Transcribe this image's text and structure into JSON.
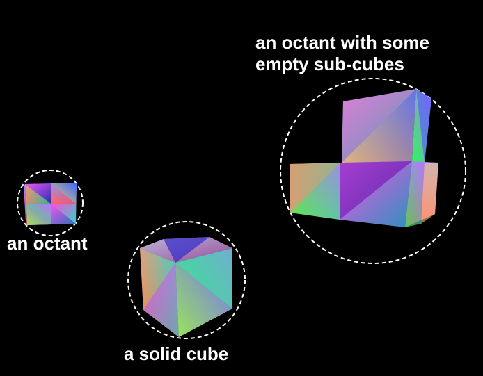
{
  "colors": {
    "background": "#000000",
    "label": "#ffffff",
    "circle_outline": "#ffffff"
  },
  "labels": {
    "octant": "an octant",
    "solid_cube": "a solid cube",
    "octant_empty_line1": "an octant with some",
    "octant_empty_line2": "empty sub-cubes"
  }
}
